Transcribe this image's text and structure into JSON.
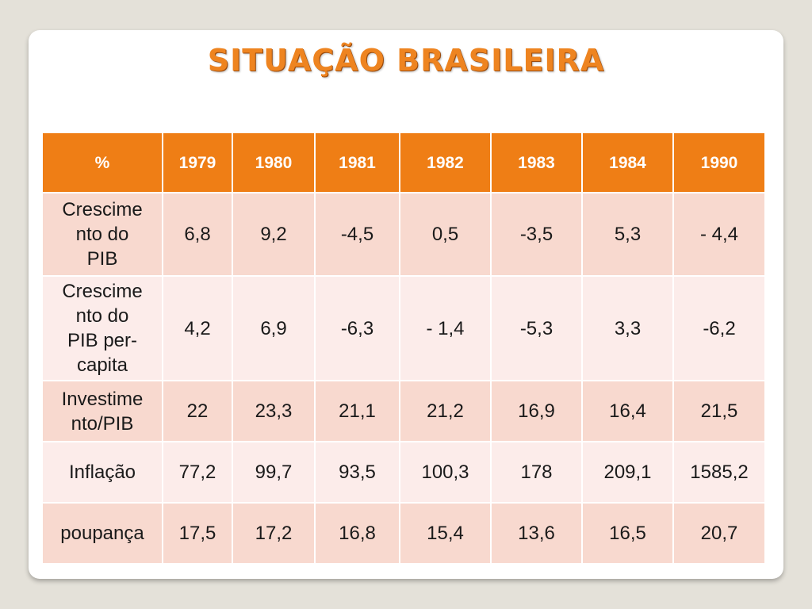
{
  "title": "SITUAÇÃO BRASILEIRA",
  "table": {
    "headers": [
      "%",
      "1979",
      "1980",
      "1981",
      "1982",
      "1983",
      "1984",
      "1990"
    ],
    "rows": [
      {
        "label": "Crescime\nnto do\nPIB",
        "values": [
          "6,8",
          "9,2",
          "-4,5",
          "0,5",
          "-3,5",
          "5,3",
          "- 4,4"
        ]
      },
      {
        "label": "Crescime\nnto do\nPIB per-\ncapita",
        "values": [
          "4,2",
          "6,9",
          "-6,3",
          "- 1,4",
          "-5,3",
          "3,3",
          "-6,2"
        ]
      },
      {
        "label": "Investime\nnto/PIB",
        "values": [
          "22",
          "23,3",
          "21,1",
          "21,2",
          "16,9",
          "16,4",
          "21,5"
        ]
      },
      {
        "label": "Inflação",
        "values": [
          "77,2",
          "99,7",
          "93,5",
          "100,3",
          "178",
          "209,1",
          "1585,2"
        ]
      },
      {
        "label": "poupança",
        "values": [
          "17,5",
          "17,2",
          "16,8",
          "15,4",
          "13,6",
          "16,5",
          "20,7"
        ]
      }
    ]
  },
  "colors": {
    "accent": "#ee8420",
    "header_bg": "#ef7e15",
    "row_dark": "#f8d9cf",
    "row_light": "#fcecea",
    "background": "#e4e1d9"
  }
}
